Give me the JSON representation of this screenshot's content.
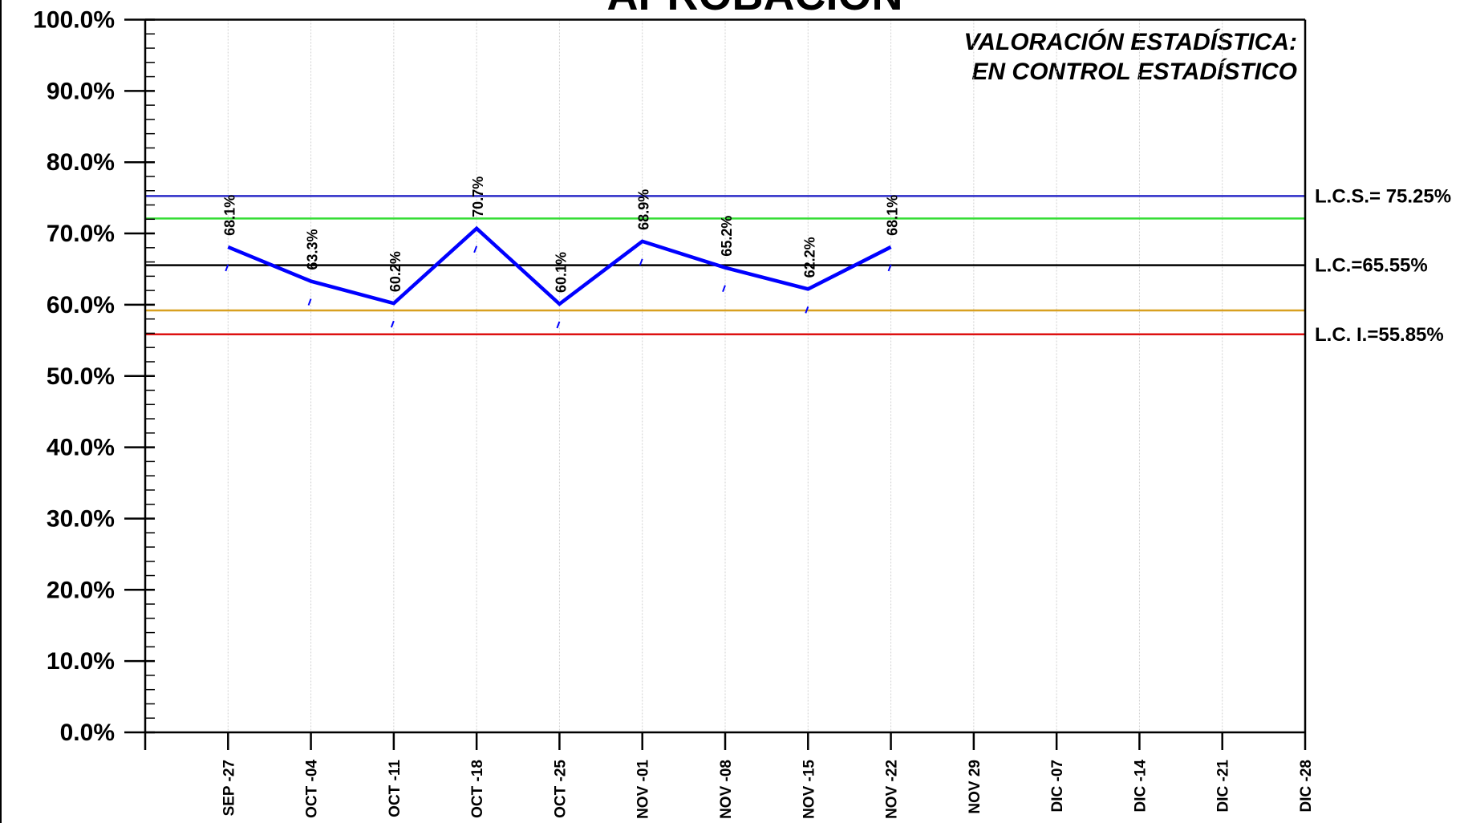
{
  "chart_data": {
    "type": "line",
    "title": "APROBACIÓN",
    "annotation": [
      "VALORACIÓN ESTADÍSTICA:",
      "EN CONTROL ESTADÍSTICO"
    ],
    "categories": [
      "SEP -27",
      "OCT -04",
      "OCT -11",
      "OCT -18",
      "OCT -25",
      "NOV -01",
      "NOV -08",
      "NOV -15",
      "NOV -22",
      "NOV 29",
      "DIC -07",
      "DIC -14",
      "DIC -21",
      "DIC -28"
    ],
    "series": [
      {
        "color": "#0000ff",
        "values": [
          68.1,
          63.3,
          60.2,
          70.7,
          60.1,
          68.9,
          65.2,
          62.2,
          68.1,
          null,
          null,
          null,
          null,
          null
        ],
        "value_labels": [
          "68.1%",
          "63.3%",
          "60.2%",
          "70.7%",
          "60.1%",
          "68.9%",
          "65.2%",
          "62.2%",
          "68.1%",
          null,
          null,
          null,
          null,
          null
        ]
      }
    ],
    "limit_lines": [
      {
        "value": 75.25,
        "color": "#2b2bc8",
        "label": "L.C.S.= 75.25%"
      },
      {
        "value": 72.1,
        "color": "#33dd33"
      },
      {
        "value": 65.55,
        "color": "#000000",
        "label": "L.C.=65.55%"
      },
      {
        "value": 59.2,
        "color": "#d8a020"
      },
      {
        "value": 55.85,
        "color": "#dd1111",
        "label": "L.C. I.=55.85%"
      }
    ],
    "ylim": [
      0,
      100
    ],
    "yticks": [
      {
        "value": 0,
        "label": "0.0%"
      },
      {
        "value": 10,
        "label": "10.0%"
      },
      {
        "value": 20,
        "label": "20.0%"
      },
      {
        "value": 30,
        "label": "30.0%"
      },
      {
        "value": 40,
        "label": "40.0%"
      },
      {
        "value": 50,
        "label": "50.0%"
      },
      {
        "value": 60,
        "label": "60.0%"
      },
      {
        "value": 70,
        "label": "70.0%"
      },
      {
        "value": 80,
        "label": "80.0%"
      },
      {
        "value": 90,
        "label": "90.0%"
      },
      {
        "value": 100,
        "label": "100.0%"
      }
    ],
    "minor_ticks_per_major": 5,
    "grid": true
  }
}
